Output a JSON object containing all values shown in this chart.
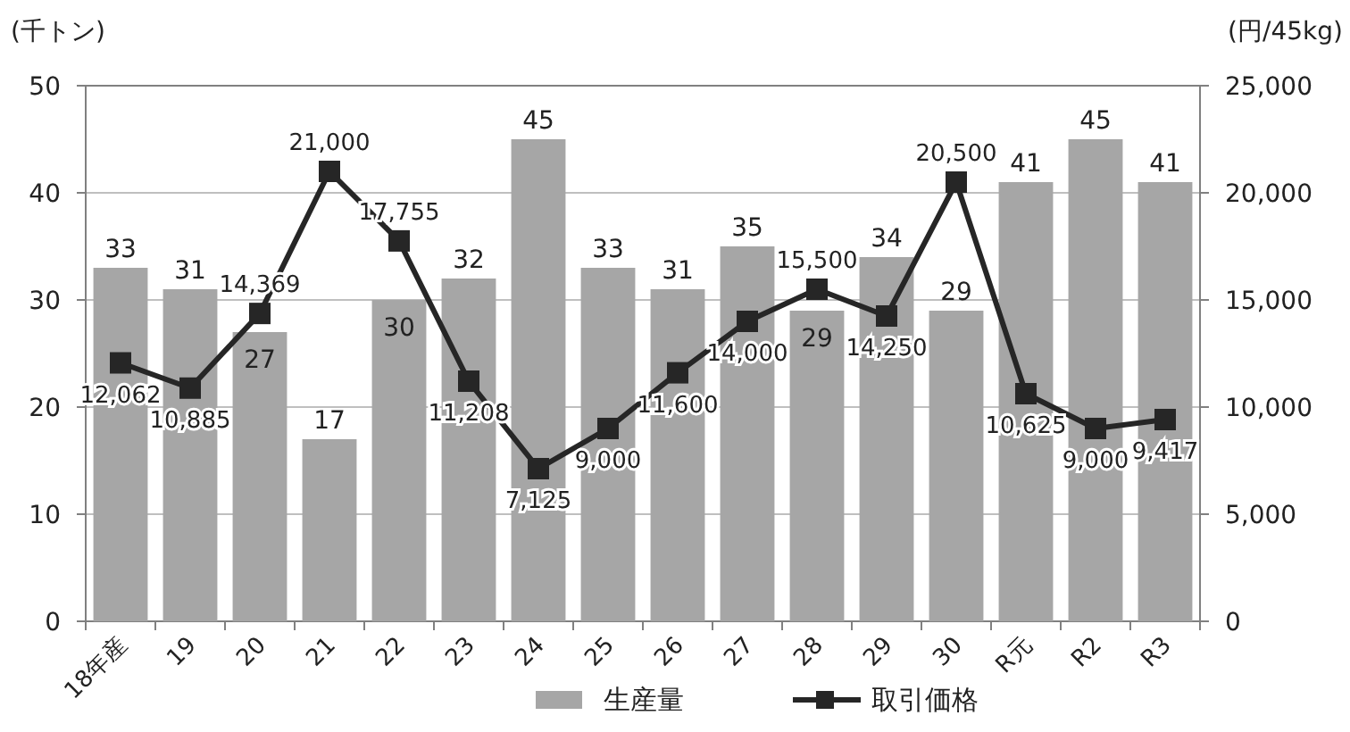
{
  "chart_data": {
    "type": "bar",
    "ylabel": "(千トン)",
    "y2label": "(円/45kg)",
    "categories": [
      "18年産",
      "19",
      "20",
      "21",
      "22",
      "23",
      "24",
      "25",
      "26",
      "27",
      "28",
      "29",
      "30",
      "R元",
      "R2",
      "R3"
    ],
    "series": [
      {
        "name": "生産量",
        "color": "#a6a6a6",
        "values": [
          33,
          31,
          27,
          17,
          30,
          32,
          45,
          33,
          31,
          35,
          29,
          34,
          29,
          41,
          45,
          41
        ]
      },
      {
        "name": "取引価格",
        "type": "line",
        "axis": "y2",
        "color": "#262626",
        "marker": "square",
        "values": [
          12062,
          10885,
          14369,
          21000,
          17755,
          11208,
          7125,
          9000,
          11600,
          14000,
          15500,
          14250,
          20500,
          10625,
          9000,
          9417
        ],
        "value_labels": [
          "12,062",
          "10,885",
          "14,369",
          "21,000",
          "17,755",
          "11,208",
          "7,125",
          "9,000",
          "11,600",
          "14,000",
          "15,500",
          "14,250",
          "20,500",
          "10,625",
          "9,000",
          "9,417"
        ]
      }
    ],
    "ylim": [
      0,
      50
    ],
    "yticks": [
      0,
      10,
      20,
      30,
      40,
      50
    ],
    "y2lim": [
      0,
      25000
    ],
    "y2ticks": [
      {
        "value": 0,
        "label": "0"
      },
      {
        "value": 5000,
        "label": "5,000"
      },
      {
        "value": 10000,
        "label": "10,000"
      },
      {
        "value": 15000,
        "label": "15,000"
      },
      {
        "value": 20000,
        "label": "20,000"
      },
      {
        "value": 25000,
        "label": "25,000"
      }
    ],
    "data_labels": true,
    "grid": "y",
    "legend": "bottom"
  }
}
